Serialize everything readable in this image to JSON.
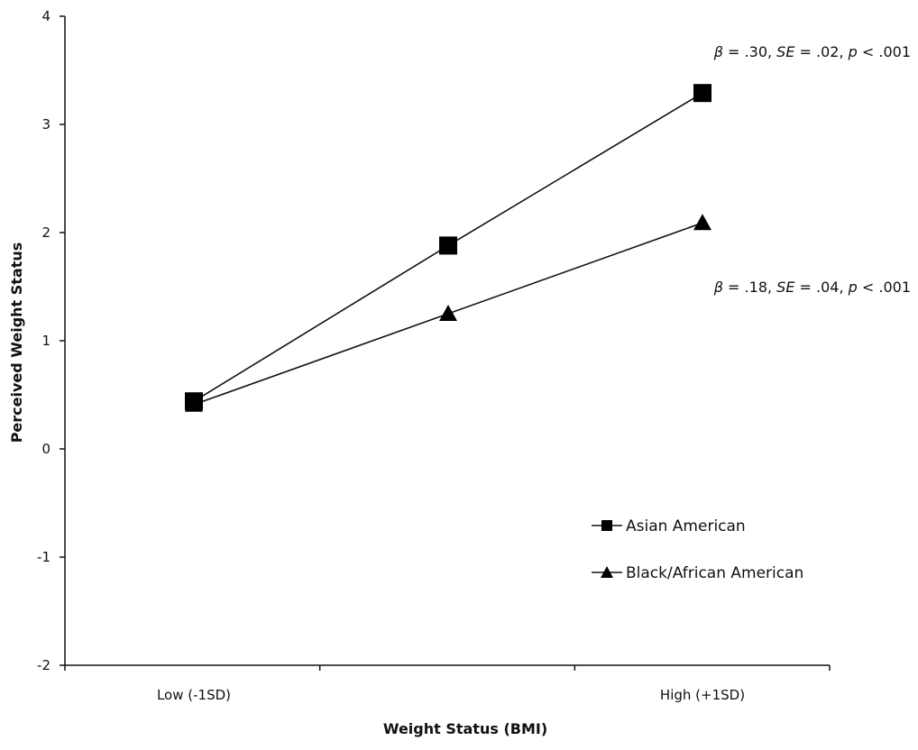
{
  "chart_data": {
    "type": "line",
    "xlabel": "Weight Status (BMI)",
    "ylabel": "Perceived Weight Status",
    "x_positions": 3,
    "x_tick_labels": [
      "Low (-1SD)",
      "",
      "High (+1SD)"
    ],
    "ylim": [
      -2,
      4
    ],
    "y_ticks": [
      -2,
      -1,
      0,
      1,
      2,
      3,
      4
    ],
    "grid": false,
    "legend_position": "bottom-right",
    "series": [
      {
        "name": "Asian American",
        "marker": "square",
        "values": [
          0.44,
          1.88,
          3.29
        ]
      },
      {
        "name": "Black/African American",
        "marker": "triangle",
        "values": [
          0.41,
          1.25,
          2.09
        ]
      }
    ],
    "annotations": [
      {
        "series": "Asian American",
        "parts": {
          "beta": "β",
          "beta_val": " = .30, ",
          "se": "SE",
          "se_val": " = .02, ",
          "p": "p",
          "p_val": " < .001"
        }
      },
      {
        "series": "Black/African American",
        "parts": {
          "beta": "β",
          "beta_val": " = .18, ",
          "se": "SE",
          "se_val": " = .04, ",
          "p": "p",
          "p_val": " < .001"
        }
      }
    ]
  }
}
